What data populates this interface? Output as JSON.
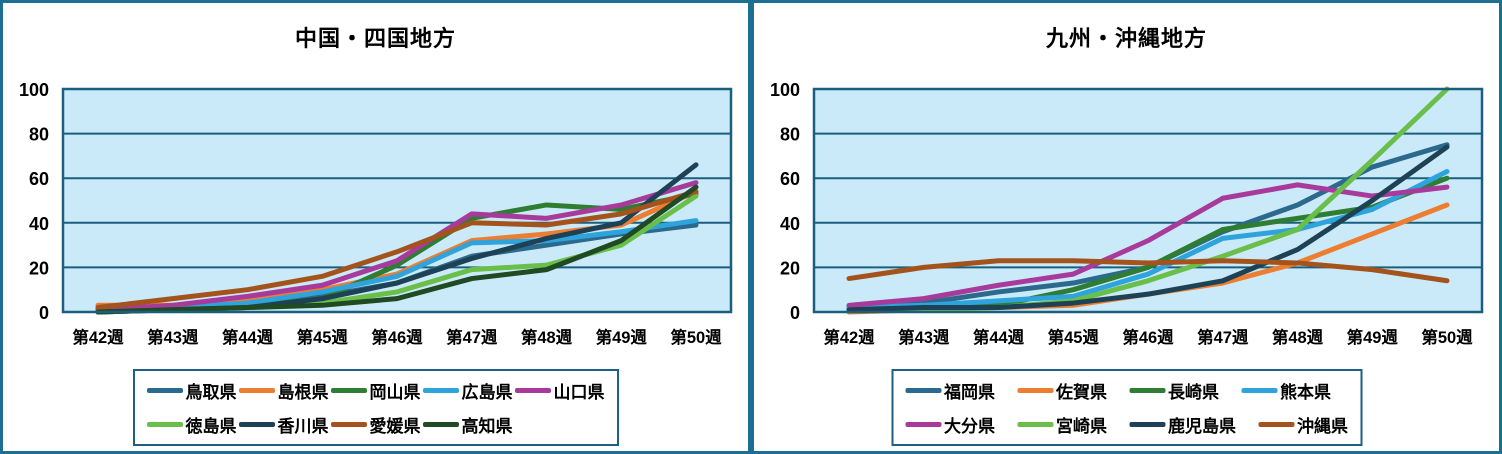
{
  "colors": {
    "panel_border": "#1C6F93",
    "plot_background": "#CBEAF9",
    "gridline": "#1B5F7E",
    "legend_border": "#1D5F85",
    "text": "#000000"
  },
  "chart_data": [
    {
      "type": "line",
      "title": "中国・四国地方",
      "xlabel": "",
      "ylabel": "",
      "ylim": [
        0,
        100
      ],
      "y_ticks": [
        0,
        20,
        40,
        60,
        80,
        100
      ],
      "grid": true,
      "legend_position": "bottom",
      "categories": [
        "第42週",
        "第43週",
        "第44週",
        "第45週",
        "第46週",
        "第47週",
        "第48週",
        "第49週",
        "第50週"
      ],
      "series": [
        {
          "name": "鳥取県",
          "color": "#2B6A8C",
          "values": [
            1,
            2,
            3,
            7,
            13,
            25,
            30,
            35,
            39
          ]
        },
        {
          "name": "島根県",
          "color": "#ED7D31",
          "values": [
            3,
            3,
            5,
            10,
            17,
            32,
            35,
            39,
            54
          ]
        },
        {
          "name": "岡山県",
          "color": "#2E7D32",
          "values": [
            1,
            2,
            3,
            6,
            21,
            42,
            48,
            46,
            53
          ]
        },
        {
          "name": "広島県",
          "color": "#2EA3DC",
          "values": [
            1,
            2,
            4,
            9,
            16,
            31,
            32,
            36,
            41
          ]
        },
        {
          "name": "山口県",
          "color": "#A83A9B",
          "values": [
            1,
            3,
            7,
            12,
            23,
            44,
            42,
            48,
            58
          ]
        },
        {
          "name": "徳島県",
          "color": "#6ABE4A",
          "values": [
            0,
            1,
            2,
            4,
            9,
            19,
            21,
            30,
            52
          ]
        },
        {
          "name": "香川県",
          "color": "#1E4255",
          "values": [
            0,
            1,
            2,
            6,
            13,
            24,
            33,
            40,
            66
          ]
        },
        {
          "name": "愛媛県",
          "color": "#A5531C",
          "values": [
            2,
            6,
            10,
            16,
            27,
            40,
            39,
            44,
            54
          ]
        },
        {
          "name": "高知県",
          "color": "#1F4A23",
          "values": [
            0,
            1,
            2,
            3,
            6,
            15,
            19,
            32,
            56
          ]
        }
      ],
      "legend_rows": [
        [
          0,
          1,
          2,
          3,
          4
        ],
        [
          5,
          6,
          7,
          8
        ]
      ]
    },
    {
      "type": "line",
      "title": "九州・沖縄地方",
      "xlabel": "",
      "ylabel": "",
      "ylim": [
        0,
        100
      ],
      "y_ticks": [
        0,
        20,
        40,
        60,
        80,
        100
      ],
      "grid": true,
      "legend_position": "bottom",
      "categories": [
        "第42週",
        "第43週",
        "第44週",
        "第45週",
        "第46週",
        "第47週",
        "第48週",
        "第49週",
        "第50週"
      ],
      "series": [
        {
          "name": "福岡県",
          "color": "#2B6A8C",
          "values": [
            2,
            4,
            9,
            13,
            20,
            36,
            48,
            65,
            75
          ]
        },
        {
          "name": "佐賀県",
          "color": "#ED7D31",
          "values": [
            0,
            1,
            2,
            3,
            8,
            13,
            22,
            35,
            48
          ]
        },
        {
          "name": "長崎県",
          "color": "#2E7D32",
          "values": [
            1,
            2,
            3,
            10,
            20,
            37,
            42,
            47,
            60
          ]
        },
        {
          "name": "熊本県",
          "color": "#2EA3DC",
          "values": [
            2,
            3,
            5,
            7,
            17,
            33,
            37,
            46,
            63
          ]
        },
        {
          "name": "大分県",
          "color": "#A83A9B",
          "values": [
            3,
            6,
            12,
            17,
            32,
            51,
            57,
            52,
            56
          ]
        },
        {
          "name": "宮崎県",
          "color": "#6ABE4A",
          "values": [
            1,
            1,
            2,
            5,
            14,
            25,
            37,
            68,
            100
          ]
        },
        {
          "name": "鹿児島県",
          "color": "#1E4255",
          "values": [
            1,
            2,
            2,
            4,
            8,
            14,
            28,
            50,
            74
          ]
        },
        {
          "name": "沖縄県",
          "color": "#A5531C",
          "values": [
            15,
            20,
            23,
            23,
            22,
            23,
            22,
            19,
            14
          ]
        }
      ],
      "legend_rows": [
        [
          0,
          1,
          2,
          3
        ],
        [
          4,
          5,
          6,
          7
        ]
      ]
    }
  ]
}
